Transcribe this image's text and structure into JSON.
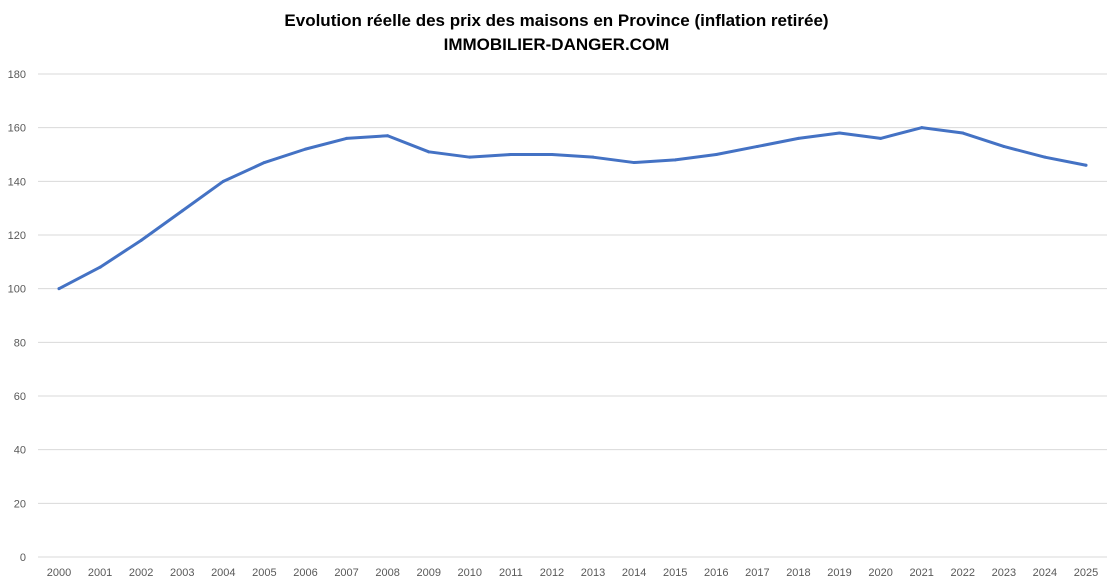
{
  "chart_data": {
    "type": "line",
    "title": "Evolution réelle des prix des maisons en Province (inflation retirée)",
    "subtitle": "IMMOBILIER-DANGER.COM",
    "xlabel": "",
    "ylabel": "",
    "categories": [
      "2000",
      "2001",
      "2002",
      "2003",
      "2004",
      "2005",
      "2006",
      "2007",
      "2008",
      "2009",
      "2010",
      "2011",
      "2012",
      "2013",
      "2014",
      "2015",
      "2016",
      "2017",
      "2018",
      "2019",
      "2020",
      "2021",
      "2022",
      "2023",
      "2024",
      "2025"
    ],
    "series": [
      {
        "values": [
          100,
          108,
          118,
          129,
          140,
          147,
          152,
          156,
          157,
          151,
          149,
          150,
          150,
          149,
          147,
          148,
          150,
          153,
          156,
          158,
          156,
          160,
          158,
          153,
          149,
          146
        ],
        "color": "#4472c4"
      }
    ],
    "ylim": [
      0,
      180
    ],
    "yticks": [
      0,
      20,
      40,
      60,
      80,
      100,
      120,
      140,
      160,
      180
    ],
    "grid": true,
    "legend": "none"
  }
}
